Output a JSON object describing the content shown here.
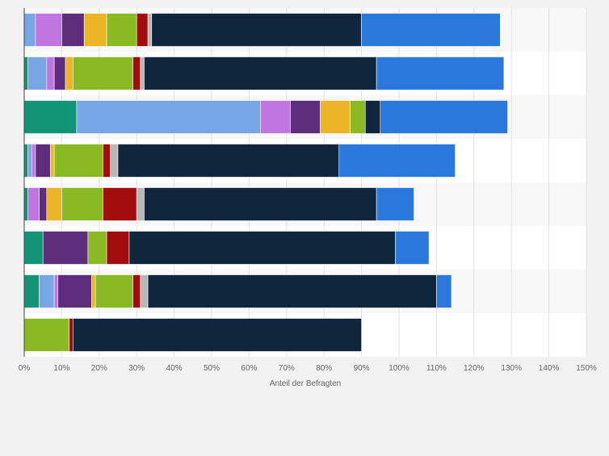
{
  "chart_data": {
    "type": "bar",
    "orientation": "horizontal",
    "stacked": true,
    "title": "",
    "xlabel": "Anteil der Befragten",
    "ylabel": "",
    "xlim": [
      0,
      150
    ],
    "x_ticks": [
      0,
      10,
      20,
      30,
      40,
      50,
      60,
      70,
      80,
      90,
      100,
      110,
      120,
      130,
      140,
      150
    ],
    "x_tick_labels": [
      "0%",
      "10%",
      "20%",
      "30%",
      "40%",
      "50%",
      "60%",
      "70%",
      "80%",
      "90%",
      "100%",
      "110%",
      "120%",
      "130%",
      "140%",
      "150%"
    ],
    "grid": "vertical",
    "legend": "none",
    "categories": [
      "",
      "",
      "",
      "",
      "",
      "",
      "",
      ""
    ],
    "series": [
      {
        "color": "#119475",
        "values": [
          0,
          1,
          14,
          1,
          1,
          5,
          4,
          0
        ]
      },
      {
        "color": "#77a6e6",
        "values": [
          3,
          5,
          49,
          1,
          0,
          0,
          4,
          0
        ]
      },
      {
        "color": "#c175e0",
        "values": [
          7,
          2,
          8,
          1,
          3,
          0,
          1,
          0
        ]
      },
      {
        "color": "#5e2d7c",
        "values": [
          6,
          3,
          8,
          4,
          2,
          12,
          9,
          0
        ]
      },
      {
        "color": "#ecb527",
        "values": [
          6,
          2,
          8,
          1,
          4,
          0,
          1,
          0
        ]
      },
      {
        "color": "#89b923",
        "values": [
          8,
          16,
          4,
          13,
          11,
          5,
          10,
          12
        ]
      },
      {
        "color": "#a10d0d",
        "values": [
          3,
          2,
          0,
          2,
          9,
          6,
          2,
          1
        ]
      },
      {
        "color": "#b8b8b8",
        "values": [
          1,
          1,
          0,
          2,
          2,
          0,
          2,
          0
        ]
      },
      {
        "color": "#10263d",
        "values": [
          56,
          62,
          4,
          59,
          62,
          71,
          77,
          77
        ]
      },
      {
        "color": "#2b78dc",
        "values": [
          37,
          34,
          34,
          31,
          10,
          9,
          4,
          0
        ]
      }
    ]
  }
}
